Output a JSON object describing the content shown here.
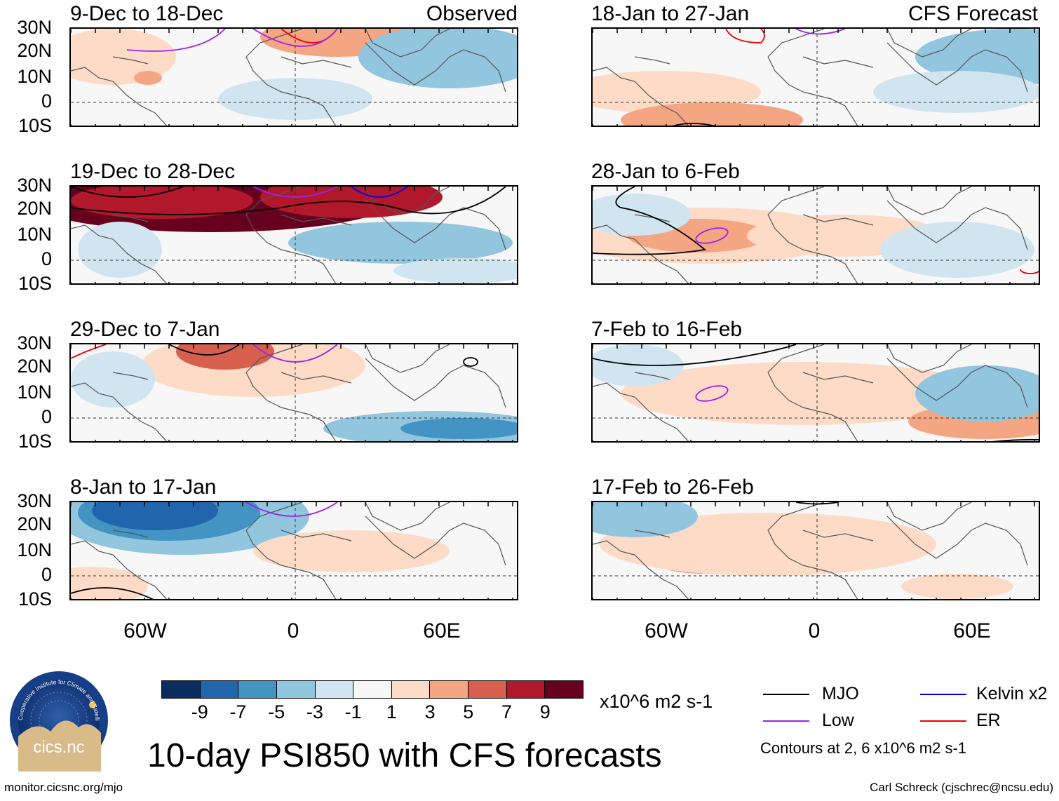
{
  "title": "10-day PSI850 with CFS forecasts",
  "observed_tag": "Observed",
  "forecast_tag": "CFS Forecast",
  "lat_labels": [
    "30N",
    "20N",
    "10N",
    "0",
    "10S"
  ],
  "lon_labels": [
    "60W",
    "0",
    "60E"
  ],
  "panels_left": [
    {
      "title": "9-Dec to 18-Dec"
    },
    {
      "title": "19-Dec to 28-Dec"
    },
    {
      "title": "29-Dec to 7-Jan"
    },
    {
      "title": "8-Jan to 17-Jan"
    }
  ],
  "panels_right": [
    {
      "title": "18-Jan to 27-Jan"
    },
    {
      "title": "28-Jan to 6-Feb"
    },
    {
      "title": "7-Feb to 16-Feb"
    },
    {
      "title": "17-Feb to 26-Feb"
    }
  ],
  "colorbar": {
    "labels": [
      "-9",
      "-7",
      "-5",
      "-3",
      "-1",
      "1",
      "3",
      "5",
      "7",
      "9"
    ],
    "colors": [
      "#0a2c5e",
      "#2166ac",
      "#4393c3",
      "#92c5de",
      "#d1e5f0",
      "#f7f7f7",
      "#fddbc7",
      "#f4a582",
      "#d6604d",
      "#b2182b",
      "#67001f"
    ],
    "units": "x10^6 m2 s-1"
  },
  "legend": {
    "items": [
      {
        "label": "MJO",
        "color": "#000000"
      },
      {
        "label": "Kelvin x2",
        "color": "#0000ee"
      },
      {
        "label": "Low",
        "color": "#a020f0"
      },
      {
        "label": "ER",
        "color": "#ee0000"
      }
    ],
    "note": "Contours at 2, 6 x10^6 m2 s-1"
  },
  "logo_text": "cics.nc",
  "logo_ring_text": "Cooperative Institute for Climate and Satellites",
  "footer_left": "monitor.cicsnc.org/mjo",
  "footer_right": "Carl Schreck (cjschrec@ncsu.edu)"
}
